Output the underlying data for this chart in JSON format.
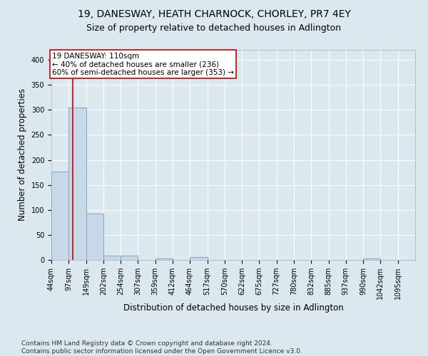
{
  "title1": "19, DANESWAY, HEATH CHARNOCK, CHORLEY, PR7 4EY",
  "title2": "Size of property relative to detached houses in Adlington",
  "xlabel": "Distribution of detached houses by size in Adlington",
  "ylabel": "Number of detached properties",
  "footer1": "Contains HM Land Registry data © Crown copyright and database right 2024.",
  "footer2": "Contains public sector information licensed under the Open Government Licence v3.0.",
  "bar_edges": [
    44,
    97,
    149,
    202,
    254,
    307,
    359,
    412,
    464,
    517,
    570,
    622,
    675,
    727,
    780,
    832,
    885,
    937,
    990,
    1042,
    1095
  ],
  "bar_heights": [
    176,
    305,
    92,
    8,
    9,
    0,
    3,
    0,
    5,
    0,
    0,
    0,
    0,
    0,
    0,
    0,
    0,
    0,
    3,
    0,
    0
  ],
  "bar_color": "#c8d8e8",
  "bar_edgecolor": "#7aaac8",
  "vline_x": 110,
  "vline_color": "#cc0000",
  "annotation_text": "19 DANESWAY: 110sqm\n← 40% of detached houses are smaller (236)\n60% of semi-detached houses are larger (353) →",
  "annotation_box_edgecolor": "#cc0000",
  "annotation_box_facecolor": "#ffffff",
  "ylim": [
    0,
    420
  ],
  "yticks": [
    0,
    50,
    100,
    150,
    200,
    250,
    300,
    350,
    400
  ],
  "background_color": "#dce8f0",
  "plot_background_color": "#dce8f0",
  "grid_color": "#ffffff",
  "title1_fontsize": 10,
  "title2_fontsize": 9,
  "xlabel_fontsize": 8.5,
  "ylabel_fontsize": 8.5,
  "tick_fontsize": 7,
  "annotation_fontsize": 7.5,
  "footer_fontsize": 6.5
}
